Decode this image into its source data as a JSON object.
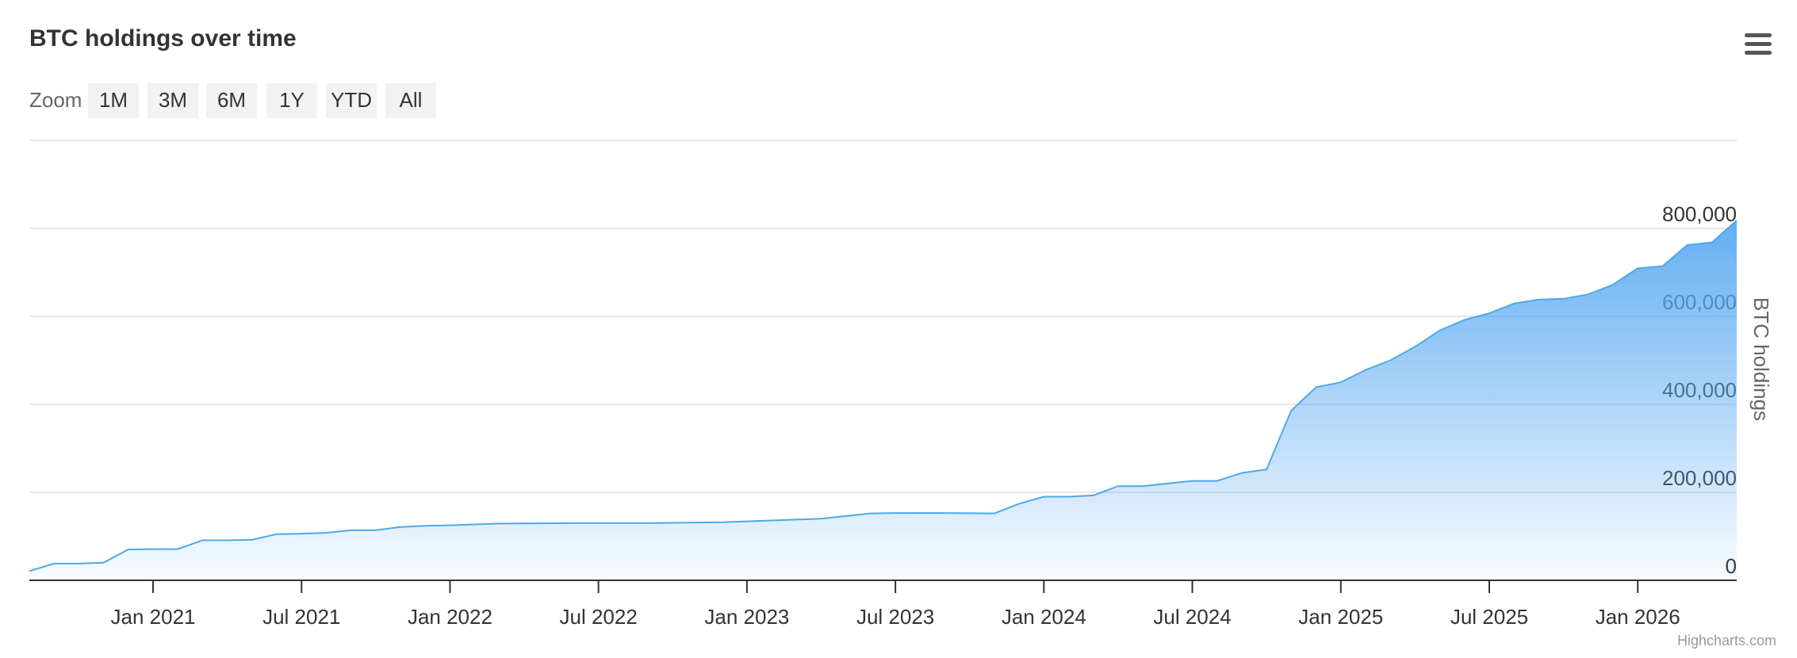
{
  "chart_data": {
    "type": "area",
    "title": "BTC holdings over time",
    "x": [
      "2020-08",
      "2020-09",
      "2020-10",
      "2020-11",
      "2020-12",
      "2021-01",
      "2021-02",
      "2021-03",
      "2021-04",
      "2021-05",
      "2021-06",
      "2021-07",
      "2021-08",
      "2021-09",
      "2021-10",
      "2021-11",
      "2021-12",
      "2022-01",
      "2022-03",
      "2022-06",
      "2022-09",
      "2022-12",
      "2023-03",
      "2023-04",
      "2023-06",
      "2023-07",
      "2023-09",
      "2023-11",
      "2023-12",
      "2024-01",
      "2024-02",
      "2024-03",
      "2024-04",
      "2024-05",
      "2024-06",
      "2024-07",
      "2024-08",
      "2024-09",
      "2024-10",
      "2024-11",
      "2024-12",
      "2025-01",
      "2025-02",
      "2025-03",
      "2025-04",
      "2025-05",
      "2025-06",
      "2025-07",
      "2025-08",
      "2025-09",
      "2025-10",
      "2025-11",
      "2025-12",
      "2026-01",
      "2026-02",
      "2026-03",
      "2026-04",
      "2026-05"
    ],
    "values": [
      21000,
      38000,
      38000,
      40000,
      70000,
      71000,
      71000,
      91000,
      91000,
      92000,
      105000,
      106000,
      108000,
      114000,
      114000,
      121000,
      124000,
      125000,
      129000,
      130000,
      130000,
      132000,
      138000,
      140000,
      152000,
      153000,
      153000,
      152000,
      174000,
      190000,
      190000,
      193000,
      214000,
      214000,
      220000,
      226000,
      226000,
      244000,
      252000,
      386000,
      439000,
      450000,
      478000,
      500000,
      531000,
      568000,
      592000,
      607000,
      629000,
      638000,
      640000,
      650000,
      672000,
      709000,
      714000,
      762000,
      768000,
      818000
    ],
    "color": "#4fa8e8",
    "xlim": [
      "2020-08",
      "2026-05"
    ],
    "xticks": [
      {
        "value": "2021-01",
        "label": "Jan 2021"
      },
      {
        "value": "2021-07",
        "label": "Jul 2021"
      },
      {
        "value": "2022-01",
        "label": "Jan 2022"
      },
      {
        "value": "2022-07",
        "label": "Jul 2022"
      },
      {
        "value": "2023-01",
        "label": "Jan 2023"
      },
      {
        "value": "2023-07",
        "label": "Jul 2023"
      },
      {
        "value": "2024-01",
        "label": "Jan 2024"
      },
      {
        "value": "2024-07",
        "label": "Jul 2024"
      },
      {
        "value": "2025-01",
        "label": "Jan 2025"
      },
      {
        "value": "2025-07",
        "label": "Jul 2025"
      },
      {
        "value": "2026-01",
        "label": "Jan 2026"
      }
    ],
    "ylim": [
      0,
      1000000
    ],
    "yticks": [
      0,
      {
        "value": 200000,
        "label": "200,000"
      },
      {
        "value": 400000,
        "label": "400,000"
      },
      {
        "value": 600000,
        "label": "600,000"
      },
      {
        "value": 800000,
        "label": "800,000"
      }
    ],
    "y_axis_label": "BTC holdings",
    "grid": true
  },
  "range_selector": {
    "label": "Zoom",
    "buttons": [
      "1M",
      "3M",
      "6M",
      "1Y",
      "YTD",
      "All"
    ]
  },
  "credits": "Highcharts.com"
}
